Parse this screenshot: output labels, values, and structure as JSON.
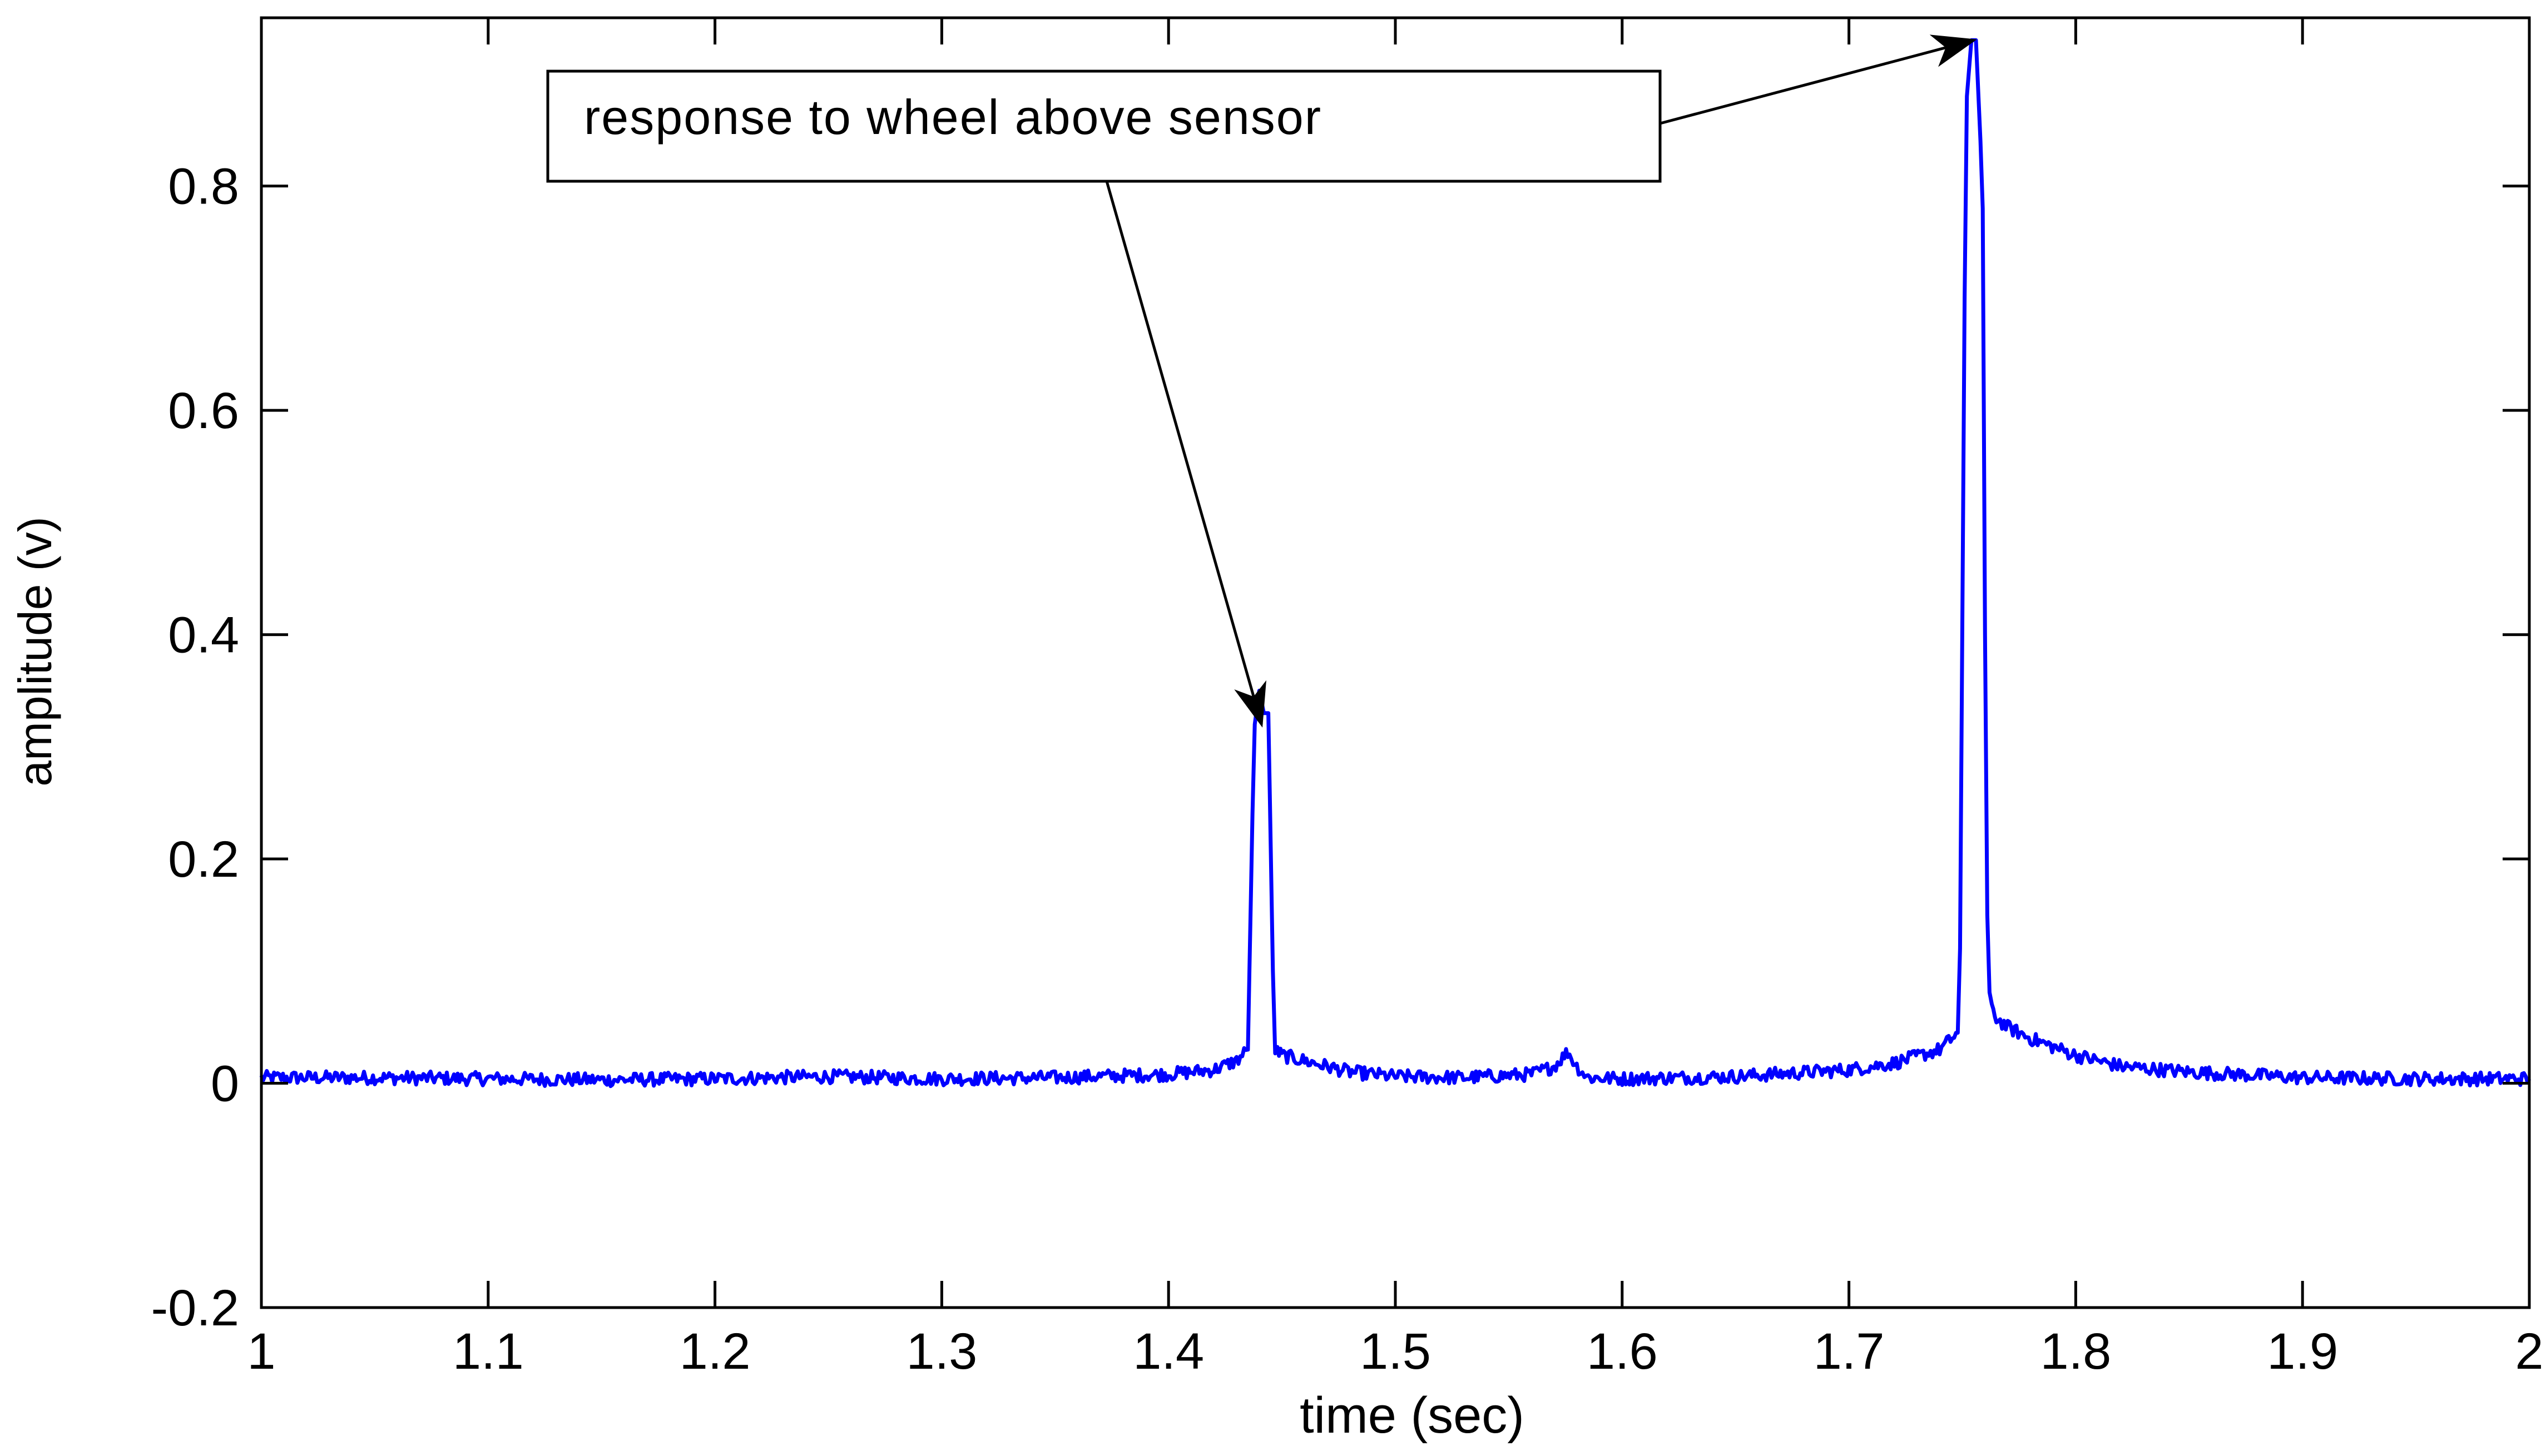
{
  "chart_data": {
    "type": "line",
    "title": "",
    "xlabel": "time (sec)",
    "ylabel": "amplitude (v)",
    "xlim": [
      1,
      2
    ],
    "ylim": [
      -0.2,
      0.95
    ],
    "grid": false,
    "legend": "none",
    "x_ticks": [
      1,
      1.1,
      1.2,
      1.3,
      1.4,
      1.5,
      1.6,
      1.7,
      1.8,
      1.9,
      2
    ],
    "x_tick_labels": [
      "1",
      "1.1",
      "1.2",
      "1.3",
      "1.4",
      "1.5",
      "1.6",
      "1.7",
      "1.8",
      "1.9",
      "2"
    ],
    "y_ticks": [
      -0.2,
      0,
      0.2,
      0.4,
      0.6,
      0.8
    ],
    "y_tick_labels": [
      "-0.2",
      "0",
      "0.2",
      "0.4",
      "0.6",
      "0.8"
    ],
    "series": [
      {
        "color": "#0000ff",
        "x": [
          1.0,
          1.05,
          1.1,
          1.15,
          1.2,
          1.25,
          1.3,
          1.35,
          1.4,
          1.42,
          1.43,
          1.435,
          1.437,
          1.438,
          1.44,
          1.442,
          1.444,
          1.446,
          1.447,
          1.448,
          1.45,
          1.46,
          1.48,
          1.5,
          1.53,
          1.56,
          1.57,
          1.576,
          1.58,
          1.585,
          1.6,
          1.65,
          1.7,
          1.72,
          1.74,
          1.748,
          1.749,
          1.751,
          1.752,
          1.754,
          1.756,
          1.758,
          1.759,
          1.76,
          1.761,
          1.762,
          1.763,
          1.765,
          1.77,
          1.78,
          1.8,
          1.82,
          1.85,
          1.9,
          1.95,
          2.0
        ],
        "y": [
          0.005,
          0.005,
          0.004,
          0.003,
          0.004,
          0.006,
          0.004,
          0.005,
          0.008,
          0.012,
          0.02,
          0.03,
          0.24,
          0.32,
          0.35,
          0.33,
          0.33,
          0.1,
          0.03,
          0.028,
          0.025,
          0.02,
          0.01,
          0.006,
          0.005,
          0.008,
          0.015,
          0.028,
          0.015,
          0.005,
          0.004,
          0.006,
          0.012,
          0.018,
          0.03,
          0.045,
          0.12,
          0.7,
          0.88,
          0.93,
          0.93,
          0.84,
          0.78,
          0.4,
          0.15,
          0.08,
          0.065,
          0.058,
          0.05,
          0.04,
          0.025,
          0.015,
          0.01,
          0.005,
          0.004,
          0.004
        ]
      }
    ],
    "annotation": {
      "text": "response to wheel above sensor",
      "arrow_targets": [
        {
          "x": 1.441,
          "y": 0.32
        },
        {
          "x": 1.755,
          "y": 0.93
        }
      ]
    }
  }
}
